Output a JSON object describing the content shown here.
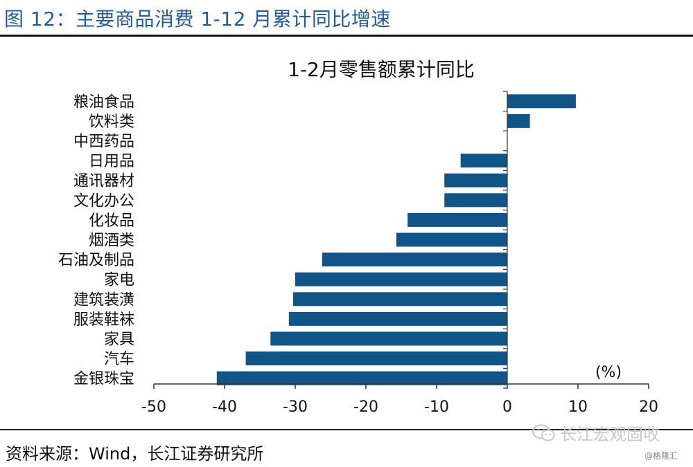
{
  "figure": {
    "title": "图 12：主要商品消费 1-12 月累计同比增速",
    "source": "资料来源：Wind，长江证券研究所",
    "watermark": "长江宏观固收",
    "watermark_sub": "@格隆汇"
  },
  "chart_data": {
    "type": "bar",
    "orientation": "horizontal",
    "title": "1-2月零售额累计同比",
    "unit_label": "(%)",
    "categories": [
      "粮油食品",
      "饮料类",
      "中西药品",
      "日用品",
      "通讯器材",
      "文化办公",
      "化妆品",
      "烟酒类",
      "石油及制品",
      "家电",
      "建筑装潢",
      "服装鞋袜",
      "家具",
      "汽车",
      "金银珠宝"
    ],
    "values": [
      9.7,
      3.2,
      0.0,
      -6.6,
      -8.9,
      -8.9,
      -14.1,
      -15.7,
      -26.2,
      -30.0,
      -30.3,
      -30.9,
      -33.5,
      -37.0,
      -41.1
    ],
    "xlim": [
      -50,
      20
    ],
    "xticks": [
      -50,
      -40,
      -30,
      -20,
      -10,
      0,
      10,
      20
    ],
    "xtick_labels": [
      "-50",
      "-40",
      "-30",
      "-20",
      "-10",
      "0",
      "10",
      "20"
    ],
    "grid": false,
    "legend": "none",
    "bar_color": "#115588"
  }
}
